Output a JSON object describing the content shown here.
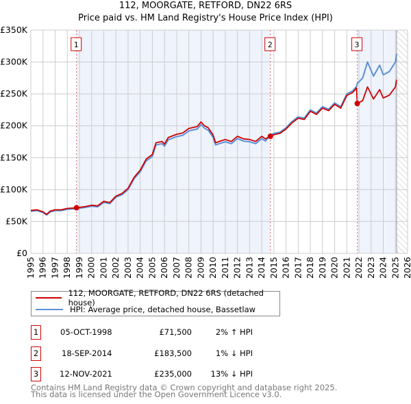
{
  "title": "112, MOORGATE, RETFORD, DN22 6RS",
  "subtitle": "Price paid vs. HM Land Registry's House Price Index (HPI)",
  "colors": {
    "property": "#cc0000",
    "hpi": "#5b8fd6",
    "shade": "#eef3fc"
  },
  "chart_data": {
    "type": "line",
    "title": "112, MOORGATE, RETFORD, DN22 6RS",
    "subtitle": "Price paid vs. HM Land Registry's House Price Index (HPI)",
    "xlim": [
      1995,
      2026
    ],
    "ylim": [
      0,
      350000
    ],
    "xticks": [
      "1995",
      "1996",
      "1997",
      "1998",
      "1999",
      "2000",
      "2001",
      "2002",
      "2003",
      "2004",
      "2005",
      "2006",
      "2007",
      "2008",
      "2009",
      "2010",
      "2011",
      "2012",
      "2013",
      "2014",
      "2015",
      "2016",
      "2017",
      "2018",
      "2019",
      "2020",
      "2021",
      "2022",
      "2023",
      "2024",
      "2025",
      "2026"
    ],
    "yticks": [
      {
        "v": 0,
        "label": "£0"
      },
      {
        "v": 50000,
        "label": "£50K"
      },
      {
        "v": 100000,
        "label": "£100K"
      },
      {
        "v": 150000,
        "label": "£150K"
      },
      {
        "v": 200000,
        "label": "£200K"
      },
      {
        "v": 250000,
        "label": "£250K"
      },
      {
        "v": 300000,
        "label": "£300K"
      },
      {
        "v": 350000,
        "label": "£350K"
      }
    ],
    "grid": true,
    "x": [
      1995,
      1995.5,
      1996,
      1996.3,
      1996.6,
      1997,
      1997.5,
      1998,
      1998.76,
      1999.5,
      2000,
      2000.5,
      2001,
      2001.5,
      2002,
      2002.5,
      2003,
      2003.5,
      2004,
      2004.5,
      2005,
      2005.3,
      2005.8,
      2006,
      2006.3,
      2007,
      2007.5,
      2008,
      2008.7,
      2009,
      2009.3,
      2009.6,
      2010,
      2010.2,
      2010.5,
      2011,
      2011.5,
      2012,
      2012.5,
      2013,
      2013.5,
      2014,
      2014.3,
      2014.71,
      2015,
      2015.5,
      2016,
      2016.5,
      2017,
      2017.5,
      2018,
      2018.5,
      2019,
      2019.5,
      2020,
      2020.5,
      2021,
      2021.5,
      2021.8,
      2021.86,
      2022.3,
      2022.7,
      2023.2,
      2023.7,
      2024,
      2024.5,
      2025,
      2025.1
    ],
    "series": [
      {
        "name": "112, MOORGATE, RETFORD, DN22 6RS (detached house)",
        "color": "#cc0000",
        "values_k": [
          67.3,
          68.3,
          65.3,
          61.2,
          66.3,
          68.3,
          68.3,
          70.4,
          71.5,
          73.4,
          75.5,
          74.5,
          81.6,
          79.6,
          89.8,
          93.8,
          102,
          119.3,
          130.6,
          147.9,
          155,
          173.4,
          175.4,
          171.4,
          181.6,
          186.7,
          188.7,
          195.8,
          198.9,
          206,
          199.9,
          196.9,
          185.6,
          173.4,
          175.4,
          178.5,
          175.4,
          183.6,
          179.5,
          178.5,
          175.4,
          183.6,
          179.5,
          183.5,
          186.1,
          188.1,
          195,
          204.9,
          211.9,
          209.9,
          222.8,
          217.8,
          227.7,
          223.7,
          233.6,
          227.7,
          247.5,
          252.5,
          259.4,
          235,
          239.3,
          261,
          241.9,
          256.7,
          243.6,
          248,
          261,
          272.3
        ]
      },
      {
        "name": "HPI: Average price, detached house, Bassetlaw",
        "color": "#5b8fd6",
        "values_k": [
          66,
          67,
          64,
          60,
          65,
          67,
          67,
          69,
          70,
          72,
          74,
          73,
          80,
          78,
          88,
          92,
          100,
          117,
          128,
          145,
          152,
          170,
          172,
          168,
          178,
          183,
          185,
          192,
          195,
          202,
          196,
          193,
          182,
          170,
          172,
          175,
          172,
          180,
          176,
          175,
          172,
          180,
          176,
          186,
          188,
          190,
          197,
          207,
          214,
          212,
          225,
          220,
          230,
          226,
          236,
          230,
          250,
          255,
          262,
          266,
          275,
          300,
          278,
          295,
          280,
          285,
          300,
          313
        ]
      }
    ],
    "sales": [
      {
        "n": "1",
        "x": 1998.76,
        "price_k": 71.5
      },
      {
        "n": "2",
        "x": 2014.71,
        "price_k": 183.5
      },
      {
        "n": "3",
        "x": 2021.86,
        "price_k": 235
      }
    ],
    "shaded_ranges": [
      [
        1998.76,
        2014.71
      ],
      [
        2021.86,
        2025.1
      ]
    ],
    "forecast_hatch_from": 2025.1,
    "legend_placement": "below"
  },
  "legend": [
    {
      "label": "112, MOORGATE, RETFORD, DN22 6RS (detached house)"
    },
    {
      "label": "HPI: Average price, detached house, Bassetlaw"
    }
  ],
  "transactions": [
    {
      "n": "1",
      "date": "05-OCT-1998",
      "price": "£71,500",
      "hpi": "2% ↑ HPI"
    },
    {
      "n": "2",
      "date": "18-SEP-2014",
      "price": "£183,500",
      "hpi": "1% ↓ HPI"
    },
    {
      "n": "3",
      "date": "12-NOV-2021",
      "price": "£235,000",
      "hpi": "13% ↓ HPI"
    }
  ],
  "footer": [
    "Contains HM Land Registry data © Crown copyright and database right 2025.",
    "This data is licensed under the Open Government Licence v3.0."
  ]
}
